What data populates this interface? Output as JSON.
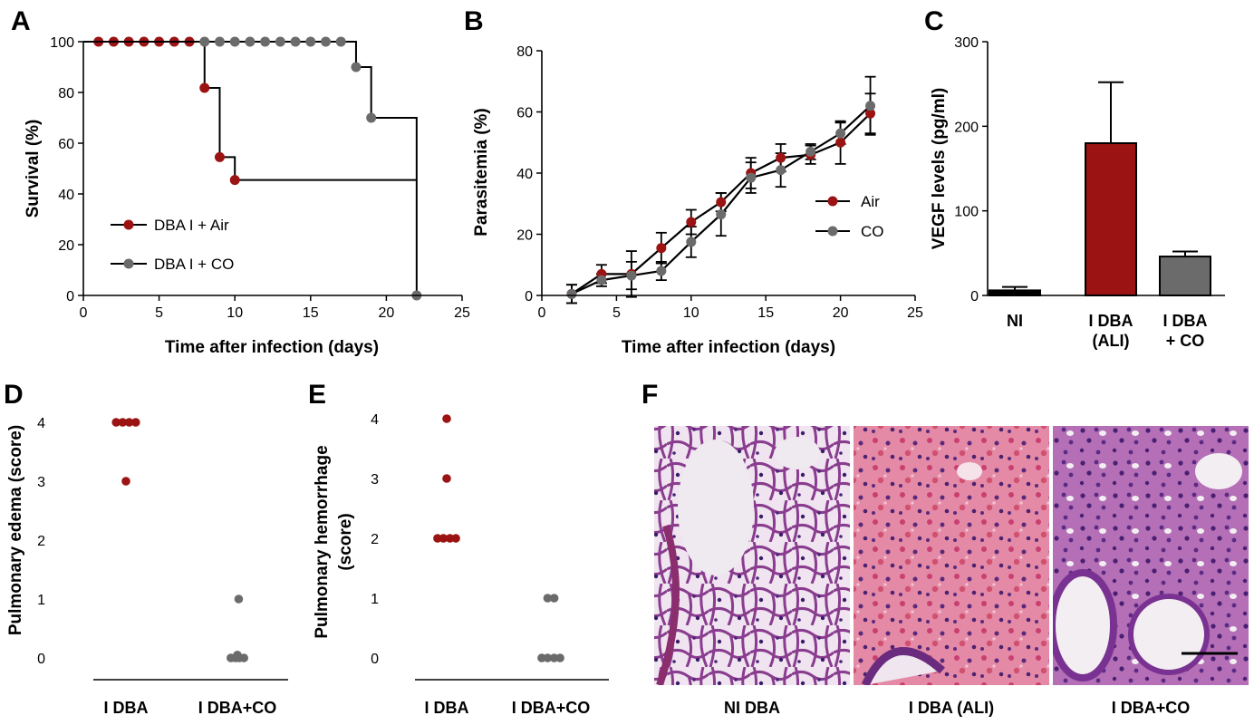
{
  "colors": {
    "air": "#9b1313",
    "co": "#6b6b6b",
    "ni": "#000000",
    "axis": "#000000"
  },
  "panels": {
    "A": "A",
    "B": "B",
    "C": "C",
    "D": "D",
    "E": "E",
    "F": "F"
  },
  "chart_data": [
    {
      "id": "A",
      "type": "line",
      "step": true,
      "xlabel": "Time after infection (days)",
      "ylabel": "Survival (%)",
      "xlim": [
        0,
        25
      ],
      "ylim": [
        0,
        100
      ],
      "xticks": [
        "0",
        "5",
        "10",
        "15",
        "20",
        "25"
      ],
      "yticks": [
        "0",
        "20",
        "40",
        "60",
        "80",
        "100"
      ],
      "legend_position": "bottom-left",
      "series": [
        {
          "name": "DBA I + Air",
          "color_key": "air",
          "end_x": 22,
          "markers": [
            [
              1,
              100
            ],
            [
              2,
              100
            ],
            [
              3,
              100
            ],
            [
              4,
              100
            ],
            [
              5,
              100
            ],
            [
              6,
              100
            ],
            [
              7,
              100
            ],
            [
              8,
              81.8
            ],
            [
              9,
              54.5
            ],
            [
              10,
              45.5
            ]
          ],
          "steps": [
            [
              0,
              100
            ],
            [
              8,
              100
            ],
            [
              8,
              81.8
            ],
            [
              9,
              81.8
            ],
            [
              9,
              54.5
            ],
            [
              10,
              54.5
            ],
            [
              10,
              45.5
            ],
            [
              22,
              45.5
            ]
          ]
        },
        {
          "name": "DBA I + CO",
          "color_key": "co",
          "markers": [
            [
              8,
              100
            ],
            [
              9,
              100
            ],
            [
              10,
              100
            ],
            [
              11,
              100
            ],
            [
              12,
              100
            ],
            [
              13,
              100
            ],
            [
              14,
              100
            ],
            [
              15,
              100
            ],
            [
              16,
              100
            ],
            [
              17,
              100
            ],
            [
              18,
              90
            ],
            [
              19,
              70
            ],
            [
              22,
              0
            ]
          ],
          "steps": [
            [
              0,
              100
            ],
            [
              18,
              100
            ],
            [
              18,
              90
            ],
            [
              19,
              90
            ],
            [
              19,
              70
            ],
            [
              22,
              70
            ],
            [
              22,
              0
            ]
          ]
        }
      ]
    },
    {
      "id": "B",
      "type": "line",
      "xlabel": "Time after infection (days)",
      "ylabel": "Parasitemia (%)",
      "xlim": [
        0,
        25
      ],
      "ylim": [
        0,
        80
      ],
      "xticks": [
        "0",
        "5",
        "10",
        "15",
        "20",
        "25"
      ],
      "yticks": [
        "0",
        "20",
        "40",
        "60",
        "80"
      ],
      "legend_position": "right",
      "x": [
        2,
        4,
        6,
        8,
        10,
        12,
        14,
        16,
        18,
        20,
        22
      ],
      "series": [
        {
          "name": "Air",
          "color_key": "air",
          "values": [
            0.5,
            7,
            7,
            15.5,
            24,
            30.5,
            40,
            45,
            46,
            50,
            59.5
          ],
          "errors": [
            3,
            3,
            7.5,
            5,
            4,
            3,
            5,
            4.5,
            3,
            7,
            6.5
          ]
        },
        {
          "name": "CO",
          "color_key": "co",
          "values": [
            0.5,
            5,
            6.5,
            8,
            17.5,
            26.5,
            38.5,
            41,
            47,
            53,
            62
          ],
          "errors": [
            3,
            2,
            4.5,
            3,
            5,
            7,
            5,
            5.5,
            2.5,
            3.5,
            9.5
          ]
        }
      ]
    },
    {
      "id": "C",
      "type": "bar",
      "ylabel": "VEGF levels (pg/ml)",
      "ylim": [
        0,
        300
      ],
      "yticks": [
        "0",
        "100",
        "200",
        "300"
      ],
      "categories": [
        [
          "NI"
        ],
        [
          "I DBA",
          "(ALI)"
        ],
        [
          "I DBA",
          "+ CO"
        ]
      ],
      "values": [
        6,
        180,
        46
      ],
      "errors": [
        4,
        72,
        6
      ],
      "color_keys": [
        "ni",
        "air",
        "co"
      ]
    },
    {
      "id": "D",
      "type": "scatter",
      "ylabel": "Pulmonary edema (score)",
      "ylim": [
        0,
        4
      ],
      "yticks": [
        "0",
        "1",
        "2",
        "3",
        "4"
      ],
      "categories": [
        "I DBA",
        "I DBA+CO"
      ],
      "groups": [
        {
          "color_key": "air",
          "points": [
            [
              -0.15,
              4
            ],
            [
              -0.05,
              4
            ],
            [
              0.05,
              4
            ],
            [
              0.15,
              4
            ],
            [
              0,
              3
            ]
          ]
        },
        {
          "color_key": "co",
          "points": [
            [
              0.02,
              1
            ],
            [
              -0.1,
              0
            ],
            [
              -0.03,
              0
            ],
            [
              0.03,
              0
            ],
            [
              0.1,
              0
            ],
            [
              0,
              0.05
            ]
          ]
        }
      ]
    },
    {
      "id": "E",
      "type": "scatter",
      "ylabel": "Pulmonary hemorrhage (score)",
      "ylim": [
        0,
        4
      ],
      "yticks": [
        "0",
        "1",
        "2",
        "3",
        "4"
      ],
      "categories": [
        "I DBA",
        "I DBA+CO"
      ],
      "groups": [
        {
          "color_key": "air",
          "points": [
            [
              0,
              4
            ],
            [
              0,
              3
            ],
            [
              -0.14,
              2
            ],
            [
              -0.05,
              2
            ],
            [
              0.05,
              2
            ],
            [
              0.14,
              2
            ]
          ]
        },
        {
          "color_key": "co",
          "points": [
            [
              -0.05,
              1
            ],
            [
              0.05,
              1
            ],
            [
              -0.14,
              0
            ],
            [
              -0.05,
              0
            ],
            [
              0.05,
              0
            ],
            [
              0.14,
              0
            ]
          ]
        }
      ]
    }
  ],
  "histology": {
    "captions": [
      "NI DBA",
      "I DBA (ALI)",
      "I DBA+CO"
    ]
  }
}
